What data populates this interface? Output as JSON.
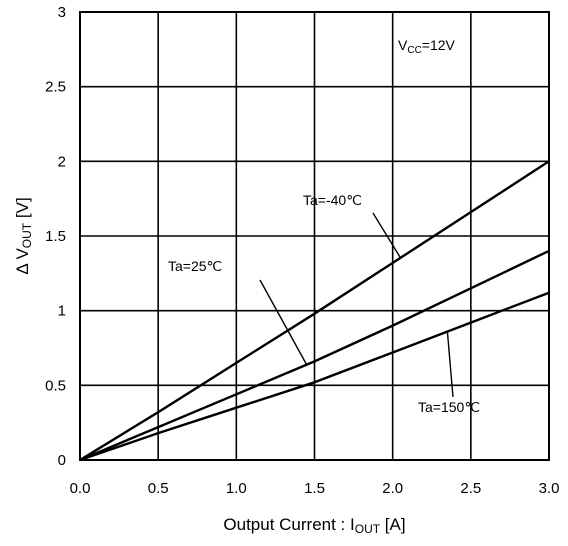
{
  "chart_data": {
    "type": "line",
    "title": "",
    "xlabel": {
      "main": "Output Current : I",
      "sub": "OUT",
      "unit": " [A]"
    },
    "ylabel": {
      "main": "Δ V",
      "sub": "OUT",
      "unit": " [V]"
    },
    "xlim": [
      0,
      3
    ],
    "ylim": [
      0,
      3
    ],
    "xticks": [
      "0.0",
      "0.5",
      "1.0",
      "1.5",
      "2.0",
      "2.5",
      "3.0"
    ],
    "yticks": [
      "0",
      "0.5",
      "1",
      "1.5",
      "2",
      "2.5",
      "3"
    ],
    "grid": true,
    "legend": "none",
    "series": [
      {
        "name": "Ta=-40℃",
        "x": [
          0,
          0.5,
          1,
          1.5,
          2,
          2.5,
          3
        ],
        "y": [
          0,
          0.32,
          0.65,
          0.98,
          1.32,
          1.66,
          2.0
        ]
      },
      {
        "name": "Ta=25℃",
        "x": [
          0,
          0.5,
          1,
          1.5,
          2,
          2.5,
          3
        ],
        "y": [
          0,
          0.22,
          0.44,
          0.66,
          0.9,
          1.15,
          1.4
        ]
      },
      {
        "name": "Ta=150℃",
        "x": [
          0,
          0.5,
          1,
          1.5,
          2,
          2.5,
          3
        ],
        "y": [
          0,
          0.18,
          0.35,
          0.52,
          0.72,
          0.92,
          1.12
        ]
      }
    ],
    "annotations": {
      "vcc": {
        "main": "V",
        "sub": "CC",
        "rest": "=12V"
      },
      "labels": [
        "Ta=-40℃",
        "Ta=25℃",
        "Ta=150℃"
      ]
    }
  }
}
